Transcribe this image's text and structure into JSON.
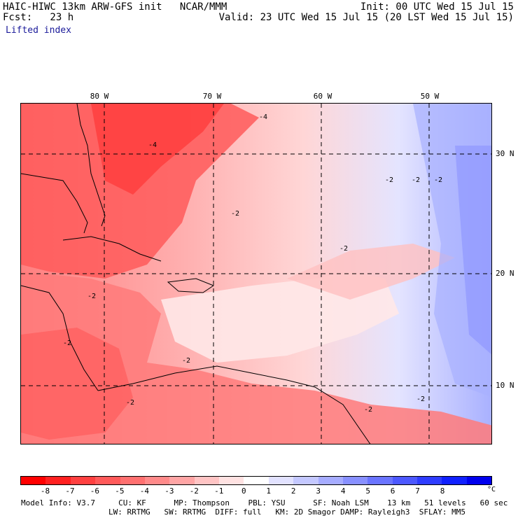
{
  "header": {
    "title": "HAIC-HIWC 13km ARW-GFS init   NCAR/MMM",
    "fcst": "Fcst:   23 h",
    "init": "Init: 00 UTC Wed 15 Jul 15",
    "valid": "Valid: 23 UTC Wed 15 Jul 15 (20 LST Wed 15 Jul 15)",
    "field": "Lifted index"
  },
  "map": {
    "lon_labels": [
      "80 W",
      "70 W",
      "60 W",
      "50 W"
    ],
    "lat_labels": [
      "30 N",
      "20 N",
      "10 N"
    ],
    "contour_labels": [
      "-4",
      "-4",
      "-2",
      "-2",
      "-2",
      "-2",
      "-2",
      "-2",
      "-2",
      "-2",
      "-2",
      "-2",
      "-2"
    ]
  },
  "colorbar": {
    "ticks": [
      "-8",
      "-7",
      "-6",
      "-5",
      "-4",
      "-3",
      "-2",
      "-1",
      "0",
      "1",
      "2",
      "3",
      "4",
      "5",
      "6",
      "7",
      "8"
    ],
    "unit": "°C",
    "colors": [
      "#ff0000",
      "#ff2020",
      "#ff4040",
      "#ff5a5a",
      "#ff7070",
      "#ff8a8a",
      "#ffa5a5",
      "#ffc4c4",
      "#ffe2e2",
      "#ffffff",
      "#e2e2ff",
      "#c4c8ff",
      "#a6acff",
      "#8890ff",
      "#6a74ff",
      "#4c58ff",
      "#2e3cff",
      "#1020ff",
      "#0000ee"
    ]
  },
  "footer": {
    "line1": "Model Info: V3.7     CU: KF      MP: Thompson    PBL: YSU      SF: Noah LSM    13 km   51 levels   60 sec",
    "line2": "LW: RRTMG   SW: RRTMG  DIFF: full   KM: 2D Smagor DAMP: Rayleigh3  SFLAY: MM5"
  }
}
